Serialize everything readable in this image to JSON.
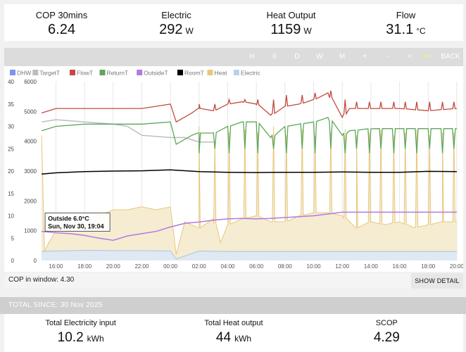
{
  "top_stats": [
    {
      "label": "COP 30mins",
      "value": "6.24",
      "unit": ""
    },
    {
      "label": "Electric",
      "value": "292",
      "unit": "W"
    },
    {
      "label": "Heat Output",
      "value": "1159",
      "unit": "W"
    },
    {
      "label": "Flow",
      "value": "31.1",
      "unit": "°C"
    }
  ],
  "toolbar": {
    "buttons": [
      {
        "name": "hour",
        "label": "H"
      },
      {
        "name": "six-hours",
        "label": "6"
      },
      {
        "name": "day",
        "label": "D"
      },
      {
        "name": "week",
        "label": "W"
      },
      {
        "name": "month",
        "label": "M"
      },
      {
        "name": "zoom-in",
        "label": "+"
      },
      {
        "name": "zoom-out",
        "label": "-"
      },
      {
        "name": "pan-left",
        "label": "<"
      },
      {
        "name": "pan-right",
        "label": ">>"
      },
      {
        "name": "back",
        "label": "BACK"
      }
    ],
    "active_index": 8,
    "active_color": "#ffff55"
  },
  "chart_data": {
    "type": "line",
    "legend": [
      {
        "name": "DHW",
        "color": "#7c93f5"
      },
      {
        "name": "TargetT",
        "color": "#bdbdbd"
      },
      {
        "name": "FlowT",
        "color": "#c24a3e"
      },
      {
        "name": "ReturnT",
        "color": "#5fa65a"
      },
      {
        "name": "OutsideT",
        "color": "#b27ae0"
      },
      {
        "name": "RoomT",
        "color": "#000000"
      },
      {
        "name": "Heat",
        "color": "#e8c77a"
      },
      {
        "name": "Electric",
        "color": "#b7d1ea"
      }
    ],
    "x_ticks": [
      "16:00",
      "18:00",
      "20:00",
      "22:00",
      "00:00",
      "02:00",
      "04:00",
      "06:00",
      "08:00",
      "10:00",
      "12:00",
      "14:00",
      "16:00",
      "18:00",
      "20:00"
    ],
    "x_range_hours": [
      14.75,
      44.25
    ],
    "y_left_ticks": [
      "0",
      "5",
      "10",
      "15",
      "20",
      "25",
      "30",
      "35",
      "40"
    ],
    "y_left_range": [
      0,
      40
    ],
    "y_right_ticks": [
      "0",
      "1000",
      "2000",
      "3000",
      "4000",
      "5000",
      "6000"
    ],
    "y_right_range": [
      0,
      6000
    ],
    "grid": "vertical",
    "series": [
      {
        "name": "FlowT",
        "axis": "left",
        "x": [
          15,
          16,
          18,
          20,
          22,
          24,
          24.4,
          25.5,
          26,
          27,
          28,
          29,
          30,
          31,
          32,
          33,
          34,
          35,
          36,
          36.5,
          38,
          40,
          42,
          44
        ],
        "y": [
          33,
          34,
          34,
          34,
          34,
          35,
          31,
          33,
          34,
          33.5,
          35,
          35.5,
          35,
          32.5,
          34.5,
          35,
          36,
          37.5,
          32,
          34,
          34,
          34,
          33.5,
          34
        ]
      },
      {
        "name": "ReturnT",
        "axis": "left",
        "x": [
          15,
          16,
          18,
          20,
          22,
          24,
          24.4,
          25.5,
          26,
          27,
          28,
          29,
          30,
          31,
          32,
          33,
          34,
          35,
          36,
          36.5,
          38,
          40,
          42,
          44
        ],
        "y": [
          29,
          30,
          30.5,
          30.5,
          30.5,
          31,
          26,
          28,
          28.5,
          28.5,
          30,
          31,
          31,
          27.5,
          30,
          30.5,
          31,
          32,
          28,
          29,
          29.5,
          29.5,
          29.5,
          29.5
        ]
      },
      {
        "name": "TargetT",
        "axis": "left",
        "x": [
          15,
          16,
          18,
          20,
          21,
          22,
          24,
          24.4,
          25,
          26,
          27
        ],
        "y": [
          31,
          31.5,
          31,
          30.5,
          30,
          28,
          27.5,
          27.5,
          27.5,
          26.5,
          26.5
        ]
      },
      {
        "name": "RoomT",
        "axis": "right",
        "x": [
          15,
          16,
          18,
          20,
          22,
          24,
          26,
          28,
          30,
          32,
          34,
          36,
          38,
          40,
          42,
          44
        ],
        "y": [
          2900,
          2940,
          2980,
          3000,
          3010,
          3040,
          2980,
          2960,
          2950,
          2960,
          2960,
          2970,
          2960,
          2960,
          2990,
          2980
        ]
      },
      {
        "name": "OutsideT",
        "axis": "left",
        "x": [
          15,
          16,
          17,
          18,
          19,
          20,
          21,
          22,
          23,
          24,
          25,
          26,
          27,
          28,
          29,
          30,
          31,
          32,
          33,
          34,
          35,
          36,
          38,
          40,
          42,
          44
        ],
        "y": [
          6.5,
          6.2,
          6.0,
          5.6,
          5.0,
          4.5,
          5.5,
          6.0,
          6.5,
          7.5,
          8.3,
          8.6,
          9.0,
          9.3,
          9.4,
          9.3,
          9.4,
          9.6,
          9.8,
          10.0,
          10.4,
          10.8,
          10.8,
          10.8,
          10.8,
          10.8
        ]
      },
      {
        "name": "Heat",
        "axis": "right",
        "x": [
          15,
          15.2,
          15.5,
          16,
          17,
          18,
          19,
          20,
          21,
          22,
          23,
          24,
          24.4,
          25,
          26,
          27,
          27.5,
          28,
          29,
          30,
          31,
          32,
          33,
          34,
          35,
          36,
          37,
          38,
          39,
          40,
          41,
          42,
          43,
          44
        ],
        "y": [
          4200,
          300,
          600,
          1000,
          1100,
          1300,
          1500,
          1700,
          1700,
          1800,
          1700,
          1800,
          200,
          1300,
          1100,
          1400,
          600,
          1200,
          1400,
          1500,
          1300,
          1300,
          1500,
          1600,
          1600,
          1500,
          1100,
          1300,
          1200,
          1300,
          1100,
          1200,
          1300,
          1300
        ]
      },
      {
        "name": "Electric",
        "axis": "right",
        "x": [
          15,
          16,
          18,
          20,
          22,
          24,
          24.4,
          26,
          28,
          30,
          32,
          34,
          36,
          38,
          40,
          42,
          44
        ],
        "y": [
          300,
          320,
          340,
          330,
          330,
          320,
          50,
          320,
          300,
          300,
          300,
          300,
          300,
          300,
          300,
          300,
          300
        ]
      }
    ],
    "spikes": {
      "x": [
        26,
        27.1,
        28.1,
        29.2,
        30.1,
        31.2,
        32.1,
        33.2,
        34.1,
        35.2,
        36.2,
        37,
        37.9,
        38.7,
        39.6,
        40.4,
        41.2,
        42.1,
        43,
        43.8
      ],
      "flow_peak": [
        35,
        35,
        36,
        36,
        36,
        36,
        37,
        37,
        37.5,
        38,
        36,
        35.5,
        35.5,
        35.5,
        35.5,
        35.5,
        35.5,
        35.5,
        35.5,
        35.5
      ],
      "return_dip": [
        24,
        25,
        24,
        25,
        24,
        25,
        24,
        25,
        24,
        25,
        24,
        25,
        24,
        25,
        24,
        25,
        24,
        25,
        24,
        25
      ],
      "heat_peak": [
        4500,
        4000,
        4300,
        4400,
        4300,
        4500,
        4200,
        4400,
        4200,
        4300,
        4400,
        4200,
        4300,
        4400,
        4200,
        4300,
        4400,
        4200,
        4300,
        4300
      ]
    },
    "tooltip": {
      "line1": "Outside 6.0°C",
      "line2": "Sun, Nov 30, 19:04",
      "x": 15.1,
      "y": 10
    }
  },
  "cop_window": {
    "label": "COP in window:",
    "value": "4.30"
  },
  "show_detail_label": "SHOW DETAIL",
  "total_since": "TOTAL SINCE: 30 Nov 2025",
  "bottom_stats": [
    {
      "label": "Total Electricity input",
      "value": "10.2",
      "unit": "kWh"
    },
    {
      "label": "Total Heat output",
      "value": "44",
      "unit": "kWh"
    },
    {
      "label": "SCOP",
      "value": "4.29",
      "unit": ""
    }
  ]
}
